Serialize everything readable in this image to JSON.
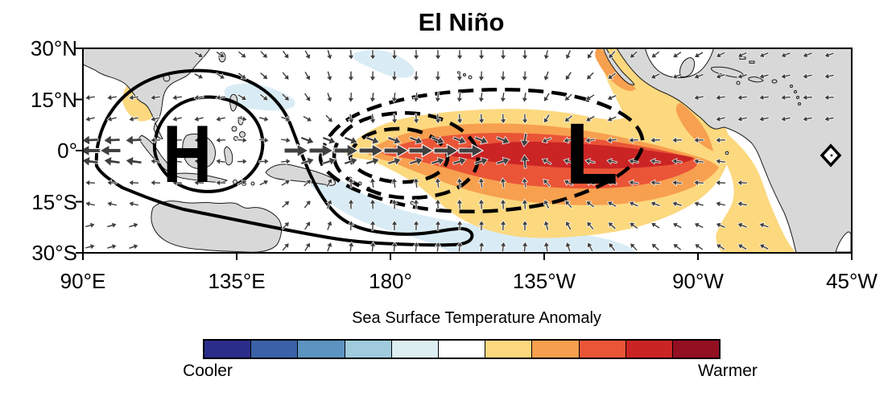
{
  "title": "El Niño",
  "axes": {
    "x_ticks": [
      "90°E",
      "135°E",
      "180°",
      "135°W",
      "90°W",
      "45°W"
    ],
    "y_ticks": [
      "30°N",
      "15°N",
      "0°",
      "15°S",
      "30°S"
    ]
  },
  "pressure": {
    "high": "H",
    "low": "L"
  },
  "colorbar": {
    "title": "Sea Surface Temperature Anomaly",
    "left_label": "Cooler",
    "right_label": "Warmer",
    "colors": [
      "#2b2d8a",
      "#3a62a9",
      "#5b93c1",
      "#9fcbdd",
      "#ddeef3",
      "#ffffff",
      "#fcd87e",
      "#f6a04f",
      "#ea5537",
      "#cb2425",
      "#930f22"
    ]
  },
  "map": {
    "ocean_color": "#ffffff",
    "land_color": "#d8d8d8",
    "coast_color": "#1a1a1a",
    "cool_shade": "#d9ecf5",
    "warm_shades": {
      "yellow": "#fcd87e",
      "orange": "#f7a04f",
      "red_orange": "#ea5537",
      "red": "#cb2425"
    },
    "contour_color": "#000000",
    "arrow_color": "#3f3f3f"
  },
  "chart_data": {
    "type": "heatmap",
    "title": "El Niño",
    "x_tick_labels": [
      "90°E",
      "135°E",
      "180°",
      "135°W",
      "90°W",
      "45°W"
    ],
    "y_tick_labels": [
      "30°N",
      "15°N",
      "0°",
      "15°S",
      "30°S"
    ],
    "lon_range": "90°E eastward to 45°W",
    "lat_range": "30°S to 30°N",
    "colorbar": {
      "label": "Sea Surface Temperature Anomaly",
      "endpoints": [
        "Cooler",
        "Warmer"
      ],
      "n_levels": 11,
      "palette": [
        "#2b2d8a",
        "#3a62a9",
        "#5b93c1",
        "#9fcbdd",
        "#ddeef3",
        "#ffffff",
        "#fcd87e",
        "#f6a04f",
        "#ea5537",
        "#cb2425",
        "#930f22"
      ]
    },
    "features": {
      "warm_sst_anomaly": "Warm tongue along the equator from ~170°E to the South American coast, peak (dark red) near 160°W-95°W; warm patches also off Baja California and over the Caribbean",
      "cool_sst_anomaly": [
        "western North Pacific near 150°E-180°, 10-20°N",
        "southwestern tropical Pacific band ~160°E-120°W, 10-25°S"
      ],
      "high_pressure": {
        "symbol": "H",
        "approx_location": "120°E, 0° (Maritime Continent)",
        "contour_style": "solid closed contours"
      },
      "low_pressure": {
        "symbol": "L",
        "approx_location": "120°W, 0° (eastern equatorial Pacific)",
        "contour_style": "dashed closed contours"
      },
      "wind_anomaly": "Large white-outlined westerly wind arrows along the equator ~175°E-145°W blowing into the low; surrounding trade-wind arrows converge toward the warm anomaly; easterly outflow west of the high",
      "station_marker": "small black diamond outline on the northeast coast of South America near 45°W"
    },
    "wind_vectors": {
      "grid_dx": 27,
      "grid_dy": 26.5,
      "style": "dark-gray arrowheads with thin white outline"
    }
  }
}
